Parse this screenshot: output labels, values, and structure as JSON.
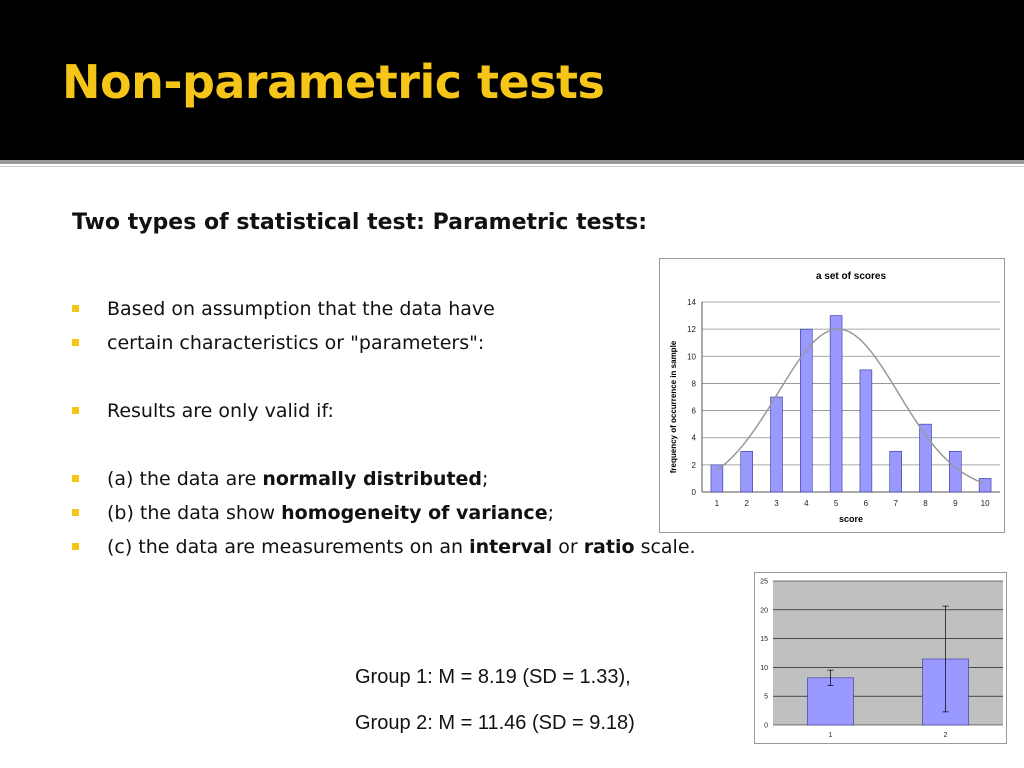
{
  "slide": {
    "title": "Non-parametric tests",
    "heading": "Two types of statistical test: Parametric tests:",
    "bullets": [
      {
        "text": "Based on assumption that the data have"
      },
      {
        "text": "certain characteristics or \"parameters\":"
      },
      {
        "text": "Results are only valid if:"
      },
      {
        "pre": "(a) the data are ",
        "bold": "normally distributed",
        "post": ";"
      },
      {
        "pre": "(b) the data show ",
        "bold": "homogeneity of variance",
        "post": ";"
      },
      {
        "pre": "(c) the data are measurements on an ",
        "bold": "interval",
        "mid": " or ",
        "bold2": "ratio",
        "post": " scale."
      }
    ],
    "group1": "Group 1: M = 8.19 (SD = 1.33),",
    "group2": "Group 2: M = 11.46 (SD = 9.18)",
    "colors": {
      "title": "#f5c518",
      "bullet": "#f5c518",
      "bar": "#9999ff",
      "bar_edge": "#333399",
      "curve": "#999999"
    }
  },
  "chart_data": [
    {
      "type": "bar",
      "title": "a set of scores",
      "xlabel": "score",
      "ylabel": "frequency of occurrence in sample",
      "categories": [
        "1",
        "2",
        "3",
        "4",
        "5",
        "6",
        "7",
        "8",
        "9",
        "10"
      ],
      "values": [
        2,
        3,
        7,
        12,
        13,
        9,
        3,
        5,
        3,
        1
      ],
      "ylim": [
        0,
        14
      ],
      "yticks": [
        0,
        2,
        4,
        6,
        8,
        10,
        12,
        14
      ],
      "grid": true,
      "overlay": "normal curve"
    },
    {
      "type": "bar",
      "categories": [
        "1",
        "2"
      ],
      "values": [
        8.19,
        11.46
      ],
      "error_bars": [
        1.33,
        9.18
      ],
      "ylim": [
        0,
        25
      ],
      "yticks": [
        0,
        5,
        10,
        15,
        20,
        25
      ],
      "grid": true
    }
  ]
}
